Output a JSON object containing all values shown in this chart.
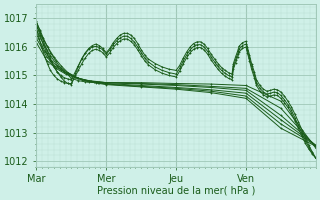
{
  "bg_color": "#cff0e8",
  "plot_bg": "#cff0e8",
  "grid_color_major": "#a0c8b8",
  "grid_color_minor": "#b8ddd0",
  "line_color": "#1a5c1a",
  "xlabel": "Pression niveau de la mer( hPa )",
  "ylim": [
    1011.8,
    1017.5
  ],
  "xlim": [
    0.0,
    4.0
  ],
  "xticks": [
    0.0,
    1.0,
    2.0,
    3.0
  ],
  "xtick_labels": [
    "Mar",
    "Mer",
    "Jeu",
    "Ven"
  ],
  "yticks": [
    1012,
    1013,
    1014,
    1015,
    1016,
    1017
  ],
  "vlines": [
    0.0,
    1.0,
    2.0,
    3.0
  ],
  "series": [
    [
      0.0,
      1016.85,
      0.05,
      1016.6,
      0.1,
      1016.3,
      0.15,
      1016.05,
      0.2,
      1015.8,
      0.28,
      1015.5,
      0.35,
      1015.25,
      0.42,
      1015.1,
      0.5,
      1014.9,
      0.6,
      1014.82,
      0.7,
      1014.78,
      0.85,
      1014.75,
      1.0,
      1014.75,
      1.5,
      1014.75,
      2.0,
      1014.72,
      2.5,
      1014.7,
      3.0,
      1014.65,
      3.5,
      1014.1,
      4.0,
      1012.45
    ],
    [
      0.0,
      1016.75,
      0.08,
      1016.35,
      0.16,
      1016.0,
      0.25,
      1015.65,
      0.35,
      1015.35,
      0.45,
      1015.1,
      0.6,
      1014.9,
      0.75,
      1014.82,
      0.9,
      1014.78,
      1.0,
      1014.75,
      1.5,
      1014.72,
      2.0,
      1014.68,
      2.5,
      1014.62,
      3.0,
      1014.55,
      3.5,
      1013.85,
      4.0,
      1012.5
    ],
    [
      0.0,
      1016.6,
      0.1,
      1016.1,
      0.2,
      1015.7,
      0.3,
      1015.35,
      0.45,
      1015.1,
      0.6,
      1014.9,
      0.78,
      1014.8,
      1.0,
      1014.75,
      1.5,
      1014.7,
      2.0,
      1014.65,
      2.5,
      1014.58,
      3.0,
      1014.48,
      3.5,
      1013.6,
      4.0,
      1012.55
    ],
    [
      0.0,
      1016.45,
      0.12,
      1015.85,
      0.22,
      1015.5,
      0.35,
      1015.2,
      0.5,
      1015.0,
      0.65,
      1014.85,
      0.82,
      1014.78,
      1.0,
      1014.72,
      1.5,
      1014.65,
      2.0,
      1014.58,
      2.5,
      1014.5,
      3.0,
      1014.38,
      3.5,
      1013.45,
      4.0,
      1012.55
    ],
    [
      0.0,
      1016.3,
      0.15,
      1015.65,
      0.25,
      1015.35,
      0.4,
      1015.12,
      0.55,
      1014.95,
      0.72,
      1014.82,
      0.88,
      1014.75,
      1.0,
      1014.7,
      1.5,
      1014.62,
      2.0,
      1014.55,
      2.5,
      1014.45,
      3.0,
      1014.28,
      3.5,
      1013.3,
      4.0,
      1012.55
    ],
    [
      0.0,
      1016.15,
      0.15,
      1015.52,
      0.28,
      1015.25,
      0.42,
      1015.05,
      0.58,
      1014.9,
      0.75,
      1014.78,
      0.9,
      1014.72,
      1.0,
      1014.68,
      1.5,
      1014.6,
      2.0,
      1014.52,
      2.5,
      1014.4,
      3.0,
      1014.2,
      3.5,
      1013.15,
      4.0,
      1012.52
    ],
    [
      0.0,
      1016.9,
      0.05,
      1016.55,
      0.1,
      1016.2,
      0.15,
      1015.9,
      0.2,
      1015.6,
      0.25,
      1015.32,
      0.3,
      1015.12,
      0.35,
      1014.95,
      0.4,
      1014.8,
      0.45,
      1014.72,
      0.5,
      1014.68,
      0.55,
      1015.0,
      0.6,
      1015.32,
      0.65,
      1015.6,
      0.7,
      1015.8,
      0.75,
      1015.95,
      0.8,
      1016.05,
      0.85,
      1016.1,
      0.9,
      1016.05,
      0.95,
      1015.95,
      1.0,
      1015.8,
      1.05,
      1015.95,
      1.1,
      1016.15,
      1.15,
      1016.3,
      1.2,
      1016.42,
      1.25,
      1016.48,
      1.3,
      1016.48,
      1.35,
      1016.42,
      1.4,
      1016.3,
      1.45,
      1016.12,
      1.5,
      1015.9,
      1.55,
      1015.72,
      1.6,
      1015.58,
      1.7,
      1015.42,
      1.8,
      1015.3,
      1.9,
      1015.22,
      2.0,
      1015.18,
      2.05,
      1015.35,
      2.1,
      1015.6,
      2.15,
      1015.82,
      2.2,
      1016.0,
      2.25,
      1016.12,
      2.3,
      1016.18,
      2.35,
      1016.18,
      2.4,
      1016.1,
      2.45,
      1015.95,
      2.5,
      1015.75,
      2.55,
      1015.58,
      2.6,
      1015.42,
      2.65,
      1015.28,
      2.7,
      1015.18,
      2.75,
      1015.1,
      2.8,
      1015.05,
      2.82,
      1015.42,
      2.85,
      1015.65,
      2.88,
      1015.85,
      2.9,
      1016.02,
      2.95,
      1016.15,
      3.0,
      1016.2,
      3.02,
      1016.0,
      3.05,
      1015.72,
      3.08,
      1015.42,
      3.12,
      1015.12,
      3.15,
      1014.85,
      3.2,
      1014.65,
      3.25,
      1014.52,
      3.3,
      1014.45,
      3.35,
      1014.48,
      3.4,
      1014.52,
      3.45,
      1014.5,
      3.5,
      1014.42,
      3.55,
      1014.28,
      3.6,
      1014.1,
      3.65,
      1013.9,
      3.7,
      1013.65,
      3.75,
      1013.38,
      3.8,
      1013.1,
      3.85,
      1012.82,
      3.9,
      1012.55,
      3.95,
      1012.32,
      4.0,
      1012.1
    ],
    [
      0.0,
      1016.78,
      0.05,
      1016.42,
      0.1,
      1016.08,
      0.15,
      1015.78,
      0.2,
      1015.52,
      0.25,
      1015.3,
      0.3,
      1015.12,
      0.35,
      1015.0,
      0.4,
      1014.92,
      0.45,
      1014.88,
      0.5,
      1014.85,
      0.55,
      1015.1,
      0.6,
      1015.35,
      0.65,
      1015.58,
      0.7,
      1015.78,
      0.75,
      1015.92,
      0.8,
      1016.0,
      0.85,
      1016.02,
      0.9,
      1015.98,
      0.95,
      1015.9,
      1.0,
      1015.75,
      1.05,
      1015.9,
      1.1,
      1016.08,
      1.15,
      1016.22,
      1.2,
      1016.32,
      1.25,
      1016.38,
      1.3,
      1016.38,
      1.35,
      1016.3,
      1.4,
      1016.18,
      1.45,
      1016.0,
      1.5,
      1015.8,
      1.55,
      1015.62,
      1.6,
      1015.48,
      1.7,
      1015.3,
      1.8,
      1015.18,
      1.9,
      1015.1,
      2.0,
      1015.05,
      2.05,
      1015.25,
      2.1,
      1015.5,
      2.15,
      1015.72,
      2.2,
      1015.9,
      2.25,
      1016.02,
      2.3,
      1016.08,
      2.35,
      1016.08,
      2.4,
      1016.0,
      2.45,
      1015.85,
      2.5,
      1015.65,
      2.55,
      1015.48,
      2.6,
      1015.32,
      2.65,
      1015.18,
      2.7,
      1015.08,
      2.75,
      1015.0,
      2.8,
      1014.95,
      2.82,
      1015.32,
      2.85,
      1015.55,
      2.88,
      1015.75,
      2.9,
      1015.92,
      2.95,
      1016.05,
      3.0,
      1016.1,
      3.02,
      1015.9,
      3.05,
      1015.62,
      3.08,
      1015.32,
      3.12,
      1015.02,
      3.15,
      1014.75,
      3.2,
      1014.55,
      3.25,
      1014.42,
      3.3,
      1014.35,
      3.35,
      1014.38,
      3.4,
      1014.42,
      3.45,
      1014.4,
      3.5,
      1014.3,
      3.55,
      1014.15,
      3.6,
      1013.98,
      3.65,
      1013.78,
      3.7,
      1013.52,
      3.75,
      1013.25,
      3.8,
      1012.98,
      3.85,
      1012.72,
      3.9,
      1012.48,
      3.95,
      1012.28,
      4.0,
      1012.1
    ],
    [
      0.0,
      1016.65,
      0.04,
      1016.28,
      0.08,
      1015.95,
      0.12,
      1015.65,
      0.16,
      1015.4,
      0.2,
      1015.18,
      0.25,
      1015.0,
      0.3,
      1014.88,
      0.35,
      1014.8,
      0.4,
      1014.75,
      0.45,
      1014.72,
      0.5,
      1014.72,
      0.55,
      1014.95,
      0.6,
      1015.18,
      0.65,
      1015.42,
      0.7,
      1015.62,
      0.75,
      1015.78,
      0.8,
      1015.88,
      0.85,
      1015.92,
      0.9,
      1015.88,
      0.95,
      1015.8,
      1.0,
      1015.65,
      1.05,
      1015.8,
      1.1,
      1015.98,
      1.15,
      1016.12,
      1.2,
      1016.22,
      1.25,
      1016.28,
      1.3,
      1016.28,
      1.35,
      1016.2,
      1.4,
      1016.08,
      1.45,
      1015.9,
      1.5,
      1015.7,
      1.55,
      1015.52,
      1.6,
      1015.38,
      1.7,
      1015.2,
      1.8,
      1015.08,
      1.9,
      1015.0,
      2.0,
      1014.95,
      2.05,
      1015.15,
      2.1,
      1015.4,
      2.15,
      1015.62,
      2.2,
      1015.8,
      2.25,
      1015.92,
      2.3,
      1015.98,
      2.35,
      1015.98,
      2.4,
      1015.9,
      2.45,
      1015.75,
      2.5,
      1015.55,
      2.55,
      1015.38,
      2.6,
      1015.22,
      2.65,
      1015.08,
      2.7,
      1014.98,
      2.75,
      1014.9,
      2.8,
      1014.85,
      2.82,
      1015.22,
      2.85,
      1015.45,
      2.88,
      1015.65,
      2.9,
      1015.82,
      2.95,
      1015.95,
      3.0,
      1016.0,
      3.02,
      1015.8,
      3.05,
      1015.52,
      3.08,
      1015.22,
      3.12,
      1014.92,
      3.15,
      1014.65,
      3.2,
      1014.45,
      3.25,
      1014.32,
      3.3,
      1014.25,
      3.35,
      1014.28,
      3.4,
      1014.32,
      3.45,
      1014.3,
      3.5,
      1014.2,
      3.55,
      1014.05,
      3.6,
      1013.88,
      3.65,
      1013.68,
      3.7,
      1013.42,
      3.75,
      1013.15,
      3.8,
      1012.88,
      3.85,
      1012.62,
      3.9,
      1012.42,
      3.95,
      1012.25,
      4.0,
      1012.1
    ]
  ]
}
